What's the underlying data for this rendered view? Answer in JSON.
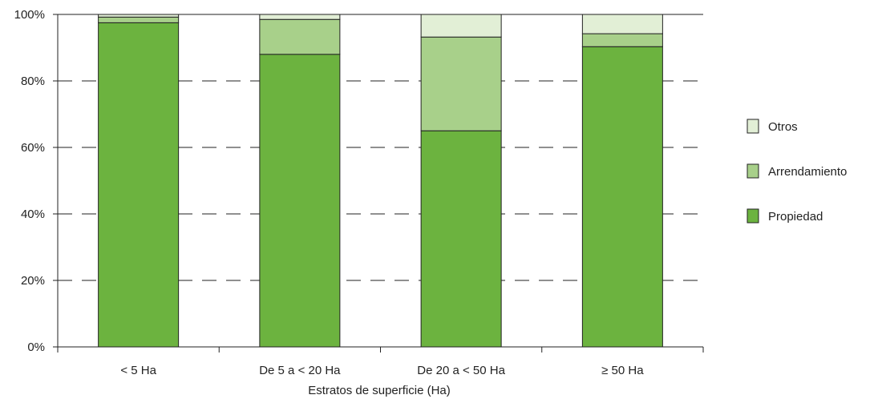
{
  "chart_data": {
    "type": "bar",
    "stacked": true,
    "percent": true,
    "categories": [
      "< 5 Ha",
      "De 5 a < 20 Ha",
      "De 20 a < 50 Ha",
      "≥ 50 Ha"
    ],
    "series": [
      {
        "name": "Propiedad",
        "color": "#6cb33f",
        "values": [
          97.5,
          88,
          65,
          90.3
        ]
      },
      {
        "name": "Arrendamiento",
        "color": "#a8d08a",
        "values": [
          1.7,
          10.5,
          28.2,
          3.9
        ]
      },
      {
        "name": "Otros",
        "color": "#e2efd6",
        "values": [
          0.8,
          1.5,
          6.8,
          5.8
        ]
      }
    ],
    "legend_order": [
      "Otros",
      "Arrendamiento",
      "Propiedad"
    ],
    "legend_position": "right",
    "title": "",
    "xlabel": "Estratos de superficie (Ha)",
    "ylabel": "",
    "ylim": [
      0,
      100
    ],
    "yticks": [
      "0%",
      "20%",
      "40%",
      "60%",
      "80%",
      "100%"
    ],
    "grid": "dashed horizontal"
  }
}
